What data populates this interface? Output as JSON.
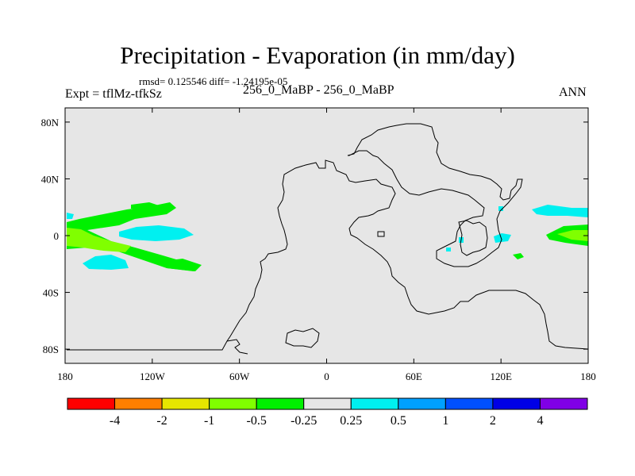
{
  "chart_data": {
    "type": "heatmap",
    "title": "Precipitation - Evaporation (in mm/day)",
    "stats_text": "rmsd= 0.125546 diff= -1.24195e-05",
    "expt_text": "Expt = tflMz-tfkSz",
    "subtitle": "256_0_MaBP - 256_0_MaBP",
    "season": "ANN",
    "x_ticks": [
      "180",
      "120W",
      "60W",
      "0",
      "60E",
      "120E",
      "180"
    ],
    "x_tick_values": [
      -180,
      -120,
      -60,
      0,
      60,
      120,
      180
    ],
    "y_ticks": [
      "80N",
      "40N",
      "0",
      "40S",
      "80S"
    ],
    "y_tick_values": [
      80,
      40,
      0,
      -40,
      -80
    ],
    "xlim": [
      -180,
      180
    ],
    "ylim": [
      -90,
      90
    ],
    "colorbar": {
      "labels": [
        "-4",
        "-2",
        "-1",
        "-0.5",
        "-0.25",
        "0.25",
        "0.5",
        "1",
        "2",
        "4"
      ],
      "colors": [
        "#ff0000",
        "#ff7f00",
        "#e6e600",
        "#80ff00",
        "#00f000",
        "#e6e6e6",
        "#00f0f0",
        "#00a0ff",
        "#0050ff",
        "#0000e6",
        "#8000e6"
      ]
    },
    "colors": {
      "missing": "#e6e6e6",
      "coast": "#000000"
    }
  }
}
